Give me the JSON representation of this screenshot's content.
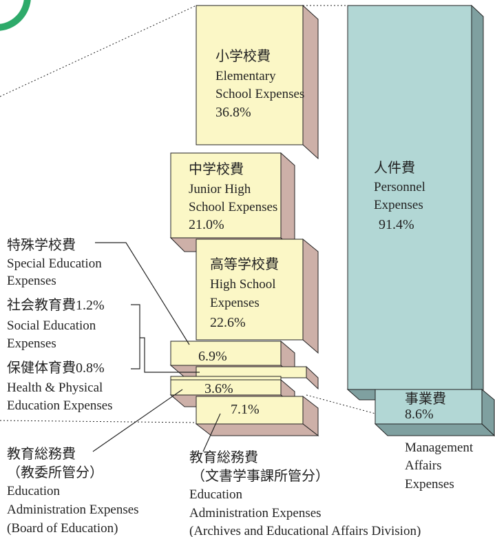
{
  "blocks": {
    "elementary": {
      "jp": "小学校費",
      "en": [
        "Elementary",
        "School Expenses"
      ],
      "pct": "36.8%"
    },
    "junior": {
      "jp": "中学校費",
      "en": [
        "Junior High",
        "School Expenses"
      ],
      "pct": "21.0%"
    },
    "high": {
      "jp": "高等学校費",
      "en": [
        "High School",
        "Expenses"
      ],
      "pct": "22.6%"
    },
    "special": {
      "pct": "6.9%"
    },
    "admin_board": {
      "pct": "3.6%"
    },
    "admin_archives": {
      "pct": "7.1%"
    },
    "personnel": {
      "jp": "人件費",
      "en": [
        "Personnel",
        "Expenses"
      ],
      "pct": "91.4%"
    },
    "management": {
      "jp": "事業費",
      "pct": "8.6%"
    }
  },
  "labels": {
    "special": {
      "jp": "特殊学校費",
      "en": [
        "Special Education",
        "Expenses"
      ]
    },
    "social": {
      "jp": "社会教育費1.2%",
      "en": [
        "Social Education",
        "Expenses"
      ]
    },
    "health": {
      "jp": "保健体育費0.8%",
      "en": [
        "Health & Physical",
        "Education Expenses"
      ]
    },
    "admin_board": {
      "jp": [
        "教育総務費",
        "（教委所管分）"
      ],
      "en": [
        "Education",
        "Administration Expenses",
        "(Board of Education)"
      ]
    },
    "admin_archives": {
      "jp": [
        "教育総務費",
        "（文書学事課所管分）"
      ],
      "en": [
        "Education",
        "Administration Expenses",
        "(Archives and Educational Affairs Division)"
      ]
    },
    "management": {
      "en": [
        "Management",
        "Affairs",
        "Expenses"
      ]
    }
  }
}
